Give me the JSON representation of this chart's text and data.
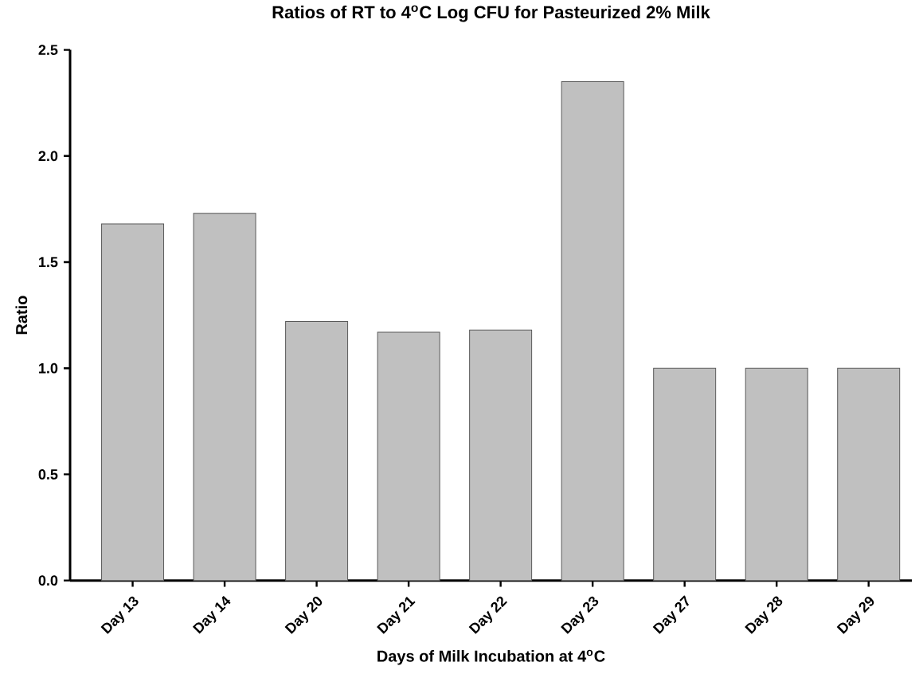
{
  "chart_data": {
    "type": "bar",
    "title": "Ratios of RT to 4$^{o}$C Log CFU for Pasteurized 2% Milk",
    "xlabel": "Days of Milk Incubation at 4$^{o}$C",
    "ylabel": "Ratio",
    "categories": [
      "Day 13",
      "Day 14",
      "Day 20",
      "Day 21",
      "Day 22",
      "Day 23",
      "Day 27",
      "Day 28",
      "Day 29"
    ],
    "values": [
      1.68,
      1.73,
      1.22,
      1.17,
      1.18,
      2.35,
      1.0,
      1.0,
      1.0
    ],
    "color": "#c0c0c0",
    "ylim": [
      0,
      2.5
    ],
    "yticks": [
      {
        "value": 0,
        "label": "0.0"
      },
      {
        "value": 0.5,
        "label": "0.5"
      },
      {
        "value": 1.0,
        "label": "1.0"
      },
      {
        "value": 1.5,
        "label": "1.5"
      },
      {
        "value": 2.0,
        "label": "2.0"
      },
      {
        "value": 2.5,
        "label": "2.5"
      }
    ]
  }
}
